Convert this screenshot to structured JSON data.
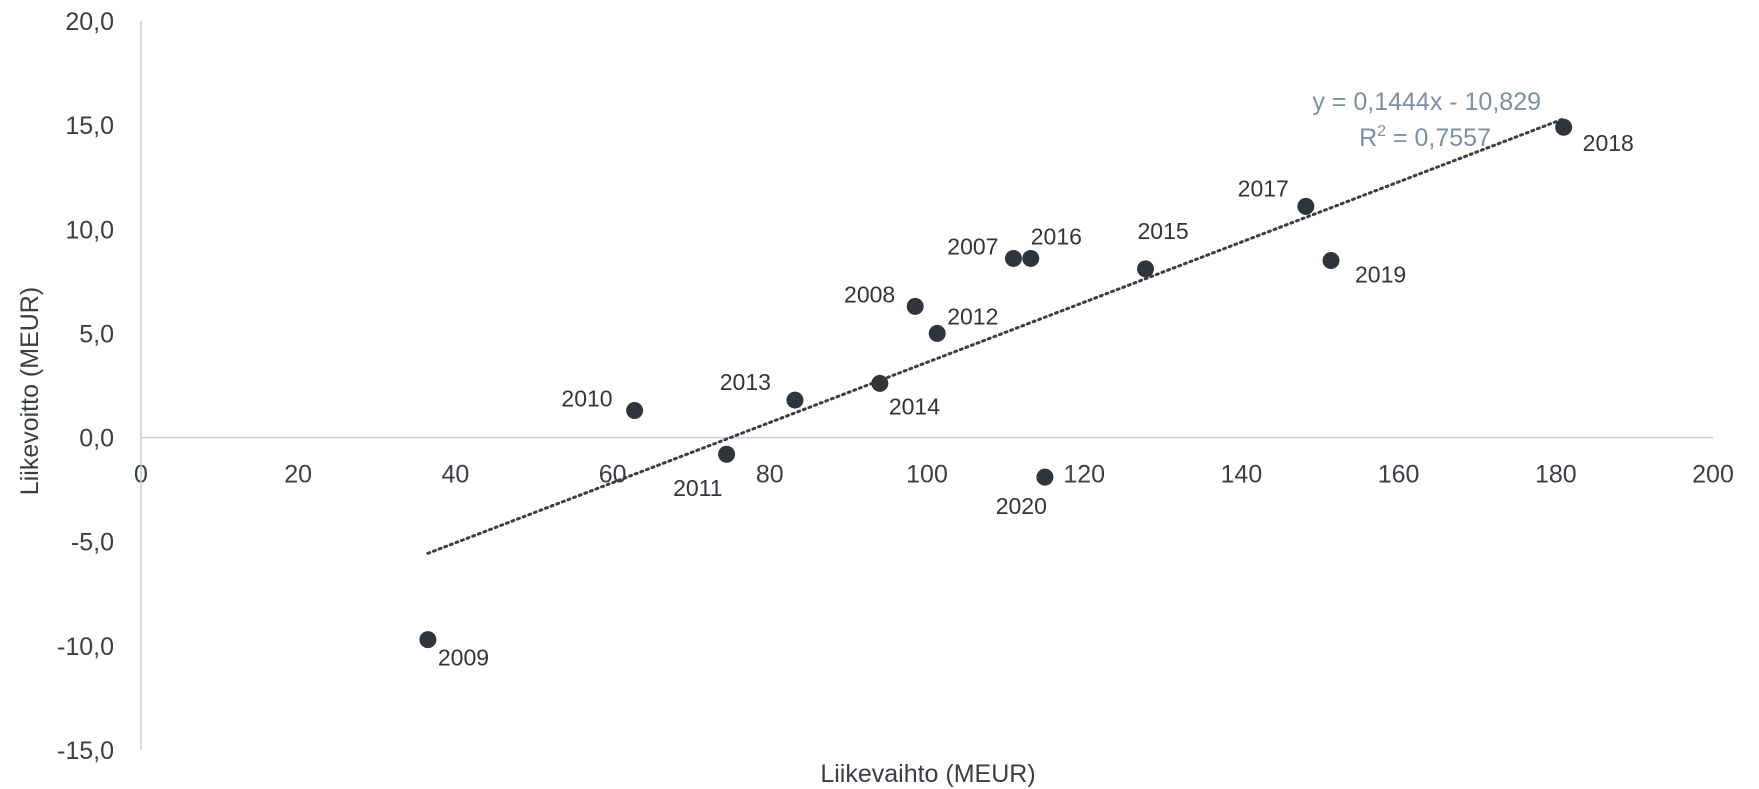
{
  "chart_data": {
    "type": "scatter",
    "xlabel": "Liikevaihto (MEUR)",
    "ylabel": "Liikevoitto (MEUR)",
    "xlim": [
      0,
      200
    ],
    "ylim": [
      -15,
      20
    ],
    "x_ticks": [
      "0",
      "20",
      "40",
      "60",
      "80",
      "100",
      "120",
      "140",
      "160",
      "180",
      "200"
    ],
    "y_ticks": [
      "20,0",
      "15,0",
      "10,0",
      "5,0",
      "0,0",
      "-5,0",
      "-10,0",
      "-15,0"
    ],
    "grid": false,
    "points": [
      {
        "label": "2007",
        "x": 111,
        "y": 8.6
      },
      {
        "label": "2008",
        "x": 98.5,
        "y": 6.3
      },
      {
        "label": "2009",
        "x": 36.5,
        "y": -9.7
      },
      {
        "label": "2010",
        "x": 62.8,
        "y": 1.3
      },
      {
        "label": "2011",
        "x": 74.5,
        "y": -0.8
      },
      {
        "label": "2012",
        "x": 101.3,
        "y": 5.0
      },
      {
        "label": "2013",
        "x": 83.2,
        "y": 1.8
      },
      {
        "label": "2014",
        "x": 94.0,
        "y": 2.6
      },
      {
        "label": "2015",
        "x": 127.8,
        "y": 8.1
      },
      {
        "label": "2016",
        "x": 113.2,
        "y": 8.6
      },
      {
        "label": "2017",
        "x": 148.2,
        "y": 11.1
      },
      {
        "label": "2018",
        "x": 181.0,
        "y": 14.9
      },
      {
        "label": "2019",
        "x": 151.4,
        "y": 8.5
      },
      {
        "label": "2020",
        "x": 115.0,
        "y": -1.9
      }
    ],
    "trendline": {
      "slope": 0.1444,
      "intercept": -10.829,
      "x_range": [
        36.5,
        181.0
      ],
      "equation": "y = 0,1444x - 10,829",
      "r2_prefix": "R",
      "r2_sup": "2",
      "r2_value": " = 0,7557"
    },
    "colors": {
      "point": "#2f353b",
      "trendline": "#3a3f45",
      "axis": "#c5ced8",
      "equation": "#7d8fa3"
    }
  }
}
